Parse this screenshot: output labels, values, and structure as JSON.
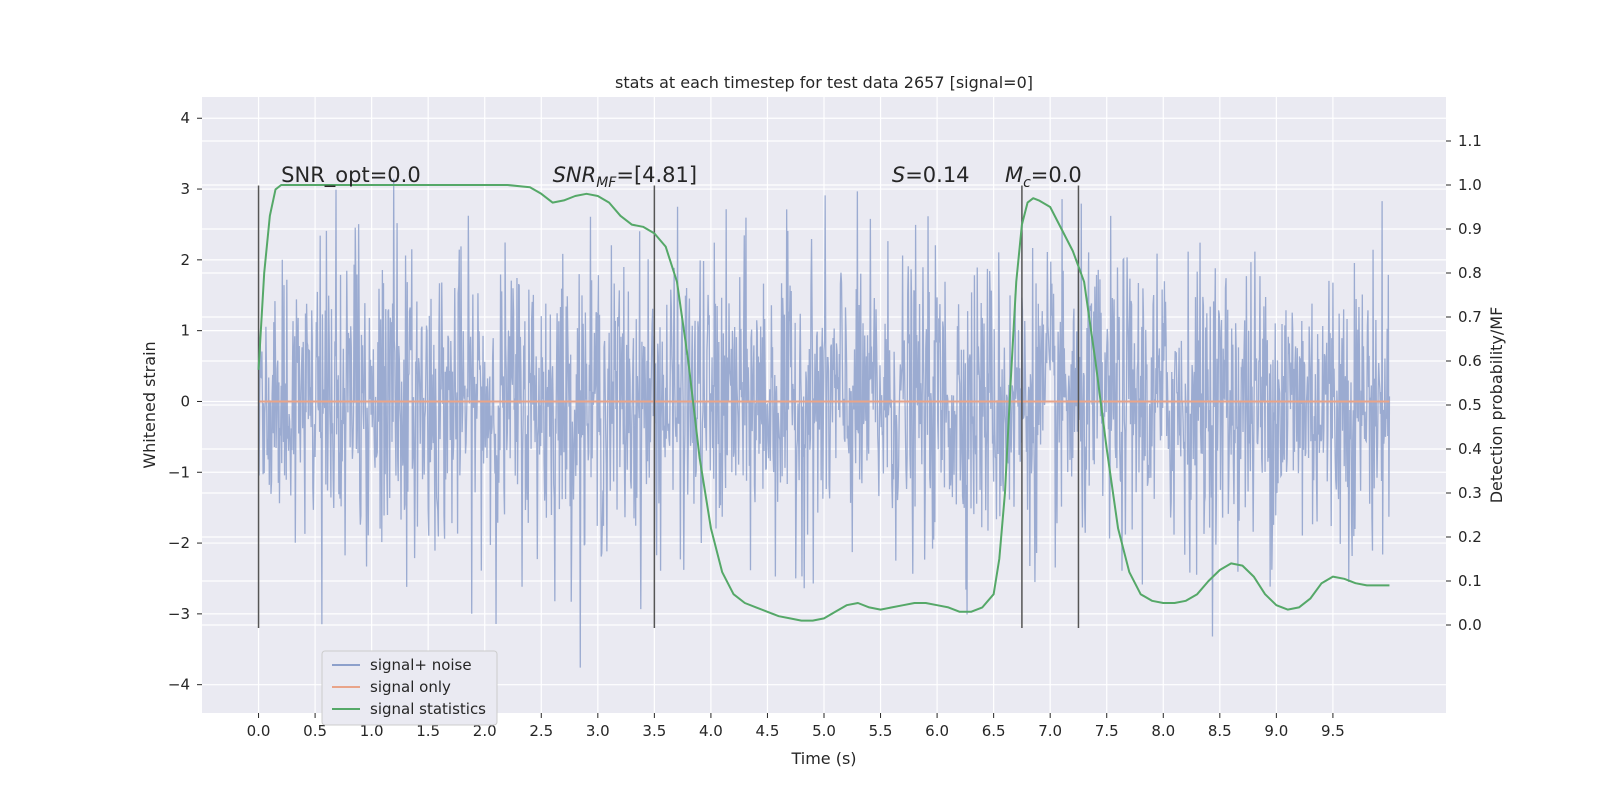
{
  "chart_data": {
    "type": "line",
    "title": "stats at each timestep for test data 2657 [signal=0]",
    "xlabel": "Time (s)",
    "ylabel": "Whitened strain",
    "y2label": "Detection probability/MF",
    "xlim": [
      -0.5,
      10.5
    ],
    "ylim": [
      -4.4,
      4.3
    ],
    "y2lim": [
      -0.2,
      1.2
    ],
    "xticks": [
      "0.0",
      "0.5",
      "1.0",
      "1.5",
      "2.0",
      "2.5",
      "3.0",
      "3.5",
      "4.0",
      "4.5",
      "5.0",
      "5.5",
      "6.0",
      "6.5",
      "7.0",
      "7.5",
      "8.0",
      "8.5",
      "9.0",
      "9.5"
    ],
    "yticks": [
      "−4",
      "−3",
      "−2",
      "−1",
      "0",
      "1",
      "2",
      "3",
      "4"
    ],
    "y2ticks": [
      "0.0",
      "0.1",
      "0.2",
      "0.3",
      "0.4",
      "0.5",
      "0.6",
      "0.7",
      "0.8",
      "0.9",
      "1.0",
      "1.1"
    ],
    "annotations": [
      {
        "text": "SNR_opt=0.0",
        "x": 0.2,
        "y": 3.1
      },
      {
        "text": "SNR_MF=[4.81]",
        "x": 2.6,
        "y": 3.1
      },
      {
        "text": "S=0.14",
        "x": 5.6,
        "y": 3.1
      },
      {
        "text": "M_c=0.0",
        "x": 6.6,
        "y": 3.1
      }
    ],
    "vlines": [
      0.0,
      3.5,
      6.75,
      7.25
    ],
    "vline_range": [
      -3.2,
      3.05
    ],
    "series": [
      {
        "name": "signal+ noise",
        "color": "#8da0cb",
        "kind": "noise",
        "t_range": [
          0.0,
          10.0
        ],
        "amplitude_sigma": 1.0
      },
      {
        "name": "signal only",
        "color": "#e9a489",
        "x": [
          0.0,
          10.0
        ],
        "values": [
          0.0,
          0.0
        ]
      },
      {
        "name": "signal statistics",
        "color": "#55a868",
        "axis": "right",
        "x": [
          0.0,
          0.05,
          0.1,
          0.15,
          0.2,
          0.3,
          0.5,
          1.0,
          1.5,
          2.0,
          2.2,
          2.4,
          2.5,
          2.6,
          2.7,
          2.8,
          2.9,
          3.0,
          3.1,
          3.2,
          3.3,
          3.4,
          3.5,
          3.6,
          3.7,
          3.8,
          3.9,
          4.0,
          4.1,
          4.2,
          4.3,
          4.4,
          4.5,
          4.6,
          4.7,
          4.8,
          4.9,
          5.0,
          5.1,
          5.2,
          5.3,
          5.4,
          5.5,
          5.6,
          5.7,
          5.8,
          5.9,
          6.0,
          6.1,
          6.2,
          6.3,
          6.4,
          6.5,
          6.55,
          6.6,
          6.65,
          6.7,
          6.75,
          6.8,
          6.85,
          6.9,
          7.0,
          7.1,
          7.2,
          7.3,
          7.4,
          7.5,
          7.6,
          7.7,
          7.8,
          7.9,
          8.0,
          8.1,
          8.2,
          8.3,
          8.4,
          8.5,
          8.6,
          8.7,
          8.8,
          8.9,
          9.0,
          9.1,
          9.2,
          9.3,
          9.4,
          9.5,
          9.6,
          9.7,
          9.8,
          9.9,
          10.0
        ],
        "values": [
          0.58,
          0.8,
          0.93,
          0.99,
          1.0,
          1.0,
          1.0,
          1.0,
          1.0,
          1.0,
          1.0,
          0.995,
          0.98,
          0.96,
          0.965,
          0.975,
          0.98,
          0.975,
          0.96,
          0.93,
          0.91,
          0.905,
          0.89,
          0.86,
          0.78,
          0.6,
          0.38,
          0.22,
          0.12,
          0.07,
          0.05,
          0.04,
          0.03,
          0.02,
          0.015,
          0.01,
          0.01,
          0.015,
          0.03,
          0.045,
          0.05,
          0.04,
          0.035,
          0.04,
          0.045,
          0.05,
          0.05,
          0.045,
          0.04,
          0.03,
          0.03,
          0.04,
          0.07,
          0.15,
          0.3,
          0.55,
          0.78,
          0.91,
          0.96,
          0.97,
          0.965,
          0.95,
          0.9,
          0.85,
          0.78,
          0.6,
          0.4,
          0.22,
          0.12,
          0.07,
          0.055,
          0.05,
          0.05,
          0.055,
          0.07,
          0.1,
          0.125,
          0.14,
          0.135,
          0.11,
          0.07,
          0.045,
          0.035,
          0.04,
          0.06,
          0.095,
          0.11,
          0.105,
          0.095,
          0.09,
          0.09,
          0.09
        ]
      }
    ],
    "legend_position": "lower-left",
    "grid": true
  }
}
